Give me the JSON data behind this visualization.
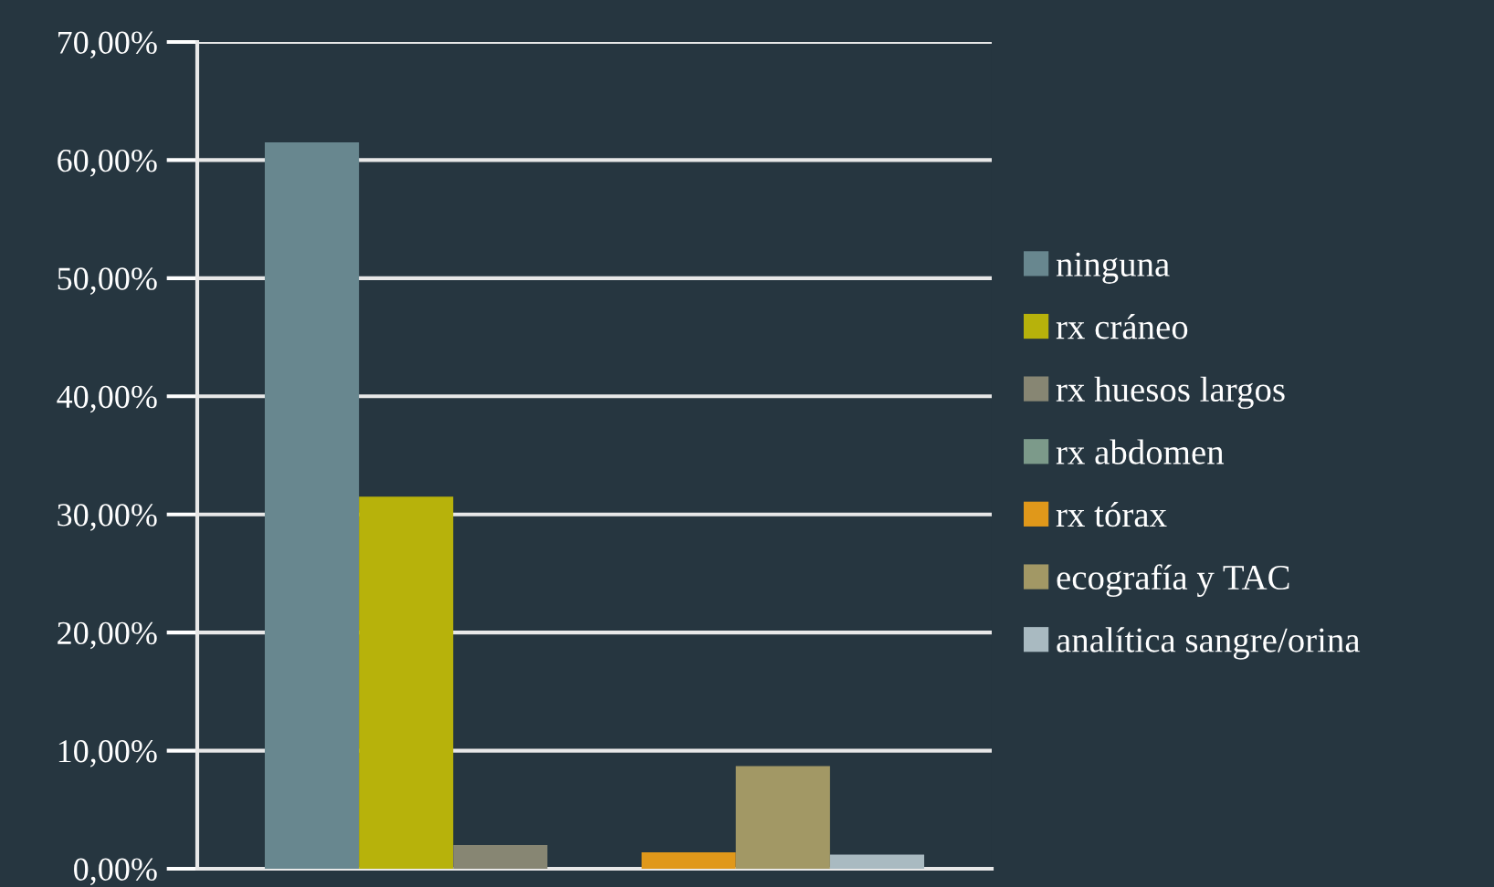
{
  "chart_data": {
    "type": "bar",
    "categories": [
      null
    ],
    "series": [
      {
        "name": "ninguna",
        "color": "#68878f",
        "values": [
          61.5
        ]
      },
      {
        "name": "rx cráneo",
        "color": "#b7b20b",
        "values": [
          31.5
        ]
      },
      {
        "name": "rx huesos largos",
        "color": "#878673",
        "values": [
          2.0
        ]
      },
      {
        "name": "rx abdomen",
        "color": "#7c9a8a",
        "values": [
          0
        ]
      },
      {
        "name": "rx tórax",
        "color": "#e0981a",
        "values": [
          1.4
        ]
      },
      {
        "name": "ecografía y TAC",
        "color": "#a29865",
        "values": [
          8.7
        ]
      },
      {
        "name": "analítica sangre/orina",
        "color": "#a9bac1",
        "values": [
          1.2
        ]
      }
    ],
    "ylim": [
      0,
      70
    ],
    "yticks": [
      {
        "value": 0,
        "label": "0,00%"
      },
      {
        "value": 10,
        "label": "10,00%"
      },
      {
        "value": 20,
        "label": "20,00%"
      },
      {
        "value": 30,
        "label": "30,00%"
      },
      {
        "value": 40,
        "label": "40,00%"
      },
      {
        "value": 50,
        "label": "50,00%"
      },
      {
        "value": 60,
        "label": "60,00%"
      },
      {
        "value": 70,
        "label": "70,00%"
      }
    ],
    "grid": "y",
    "legend": "right"
  }
}
